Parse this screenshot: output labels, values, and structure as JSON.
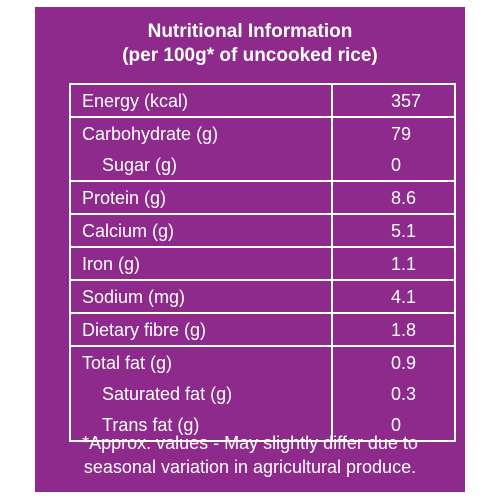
{
  "panel": {
    "background": "#8d2a8c",
    "border_color": "#ffffff",
    "text_color": "#ffffff"
  },
  "header": {
    "title_line1": "Nutritional Information",
    "title_line2": "(per 100g* of uncooked rice)"
  },
  "table": {
    "rows": [
      {
        "name": "Energy (kcal)",
        "value": "357"
      },
      {
        "name": "Carbohydrate (g)",
        "value": "79"
      },
      {
        "name": "Sugar (g)",
        "value": "0"
      },
      {
        "name": "Protein (g)",
        "value": "8.6"
      },
      {
        "name": "Calcium (g)",
        "value": "5.1"
      },
      {
        "name": "Iron (g)",
        "value": "1.1"
      },
      {
        "name": "Sodium (mg)",
        "value": "4.1"
      },
      {
        "name": "Dietary fibre (g)",
        "value": "1.8"
      },
      {
        "name": "Total fat (g)",
        "value": "0.9"
      },
      {
        "name": "Saturated fat (g)",
        "value": "0.3"
      },
      {
        "name": "Trans fat (g)",
        "value": "0"
      }
    ]
  },
  "footnote": {
    "line1": "*Approx. values - May slightly differ due to",
    "line2": "seasonal variation in agricultural produce."
  }
}
